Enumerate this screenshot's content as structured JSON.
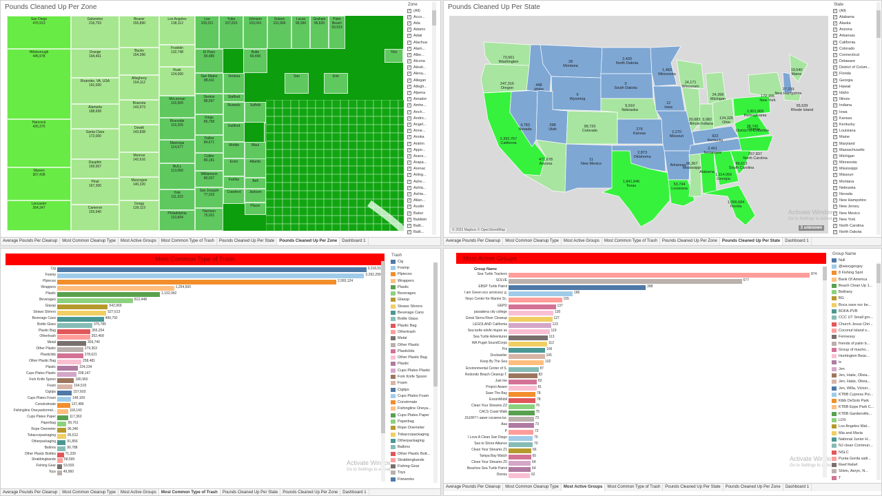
{
  "colors": {
    "treemap_dark": "#15a815",
    "map_blue": "#7ea7d4",
    "map_green": "#36f23d",
    "map_light": "#a8e5a0",
    "title_red": "#ff0000"
  },
  "zone": {
    "title": "Pounds Cleaned Up Per Zone",
    "cells": [
      {
        "name": "San Diego",
        "value": "476,913",
        "c": "#69eb45"
      },
      {
        "name": "Hillsborough",
        "value": "445,978",
        "c": "#69eb45"
      },
      {
        "name": "Hancock",
        "value": "426,370",
        "c": "#69eb45"
      },
      {
        "name": "Warren",
        "value": "307,428",
        "c": "#69eb45"
      },
      {
        "name": "Lancaster",
        "value": "264,347",
        "c": "#69eb45"
      },
      {
        "name": "Galveston",
        "value": "216,753",
        "c": "#a6e68e"
      },
      {
        "name": "Orange",
        "value": "194,461",
        "c": "#a6e68e"
      },
      {
        "name": "Roanoke, VA, USA",
        "value": "191,000",
        "c": "#a6e68e"
      },
      {
        "name": "Alameda",
        "value": "188,658",
        "c": "#a6e68e"
      },
      {
        "name": "Santa Clara",
        "value": "172,000",
        "c": "#a6e68e"
      },
      {
        "name": "Dauphin",
        "value": "169,957",
        "c": "#a6e68e"
      },
      {
        "name": "Pinal",
        "value": "167,300",
        "c": "#a6e68e"
      },
      {
        "name": "Cameron",
        "value": "155,940",
        "c": "#a6e68e"
      },
      {
        "name": "Beaver",
        "value": "155,890",
        "c": "#a6e68e"
      },
      {
        "name": "Bucks",
        "value": "154,396",
        "c": "#a6e68e"
      },
      {
        "name": "Allegheny",
        "value": "154,112",
        "c": "#a6e68e"
      },
      {
        "name": "Brazoria",
        "value": "143,973",
        "c": "#a6e68e"
      },
      {
        "name": "Dewitt",
        "value": "143,838",
        "c": "#a6e68e"
      },
      {
        "name": "Monroe",
        "value": "142,616",
        "c": "#a6e68e"
      },
      {
        "name": "Muscogee",
        "value": "140,220",
        "c": "#a6e68e"
      },
      {
        "name": "Gregg",
        "value": "139,119",
        "c": "#a6e68e"
      },
      {
        "name": "Los Angeles",
        "value": "138,112",
        "c": "#a6e68e"
      },
      {
        "name": "Franklin",
        "value": "132,748",
        "c": "#a6e68e"
      },
      {
        "name": "Rusk",
        "value": "124,000",
        "c": "#a6e68e"
      },
      {
        "name": "McLennan",
        "value": "116,500",
        "c": "#5fc85f"
      },
      {
        "name": "Riverside",
        "value": "116,205",
        "c": "#5fc85f"
      },
      {
        "name": "Maricopa",
        "value": "114,577",
        "c": "#5fc85f"
      },
      {
        "name": "NULL",
        "value": "113,056",
        "c": "#5fc85f"
      },
      {
        "name": "York",
        "value": "111,323",
        "c": "#5fc85f"
      },
      {
        "name": "Philadelphia",
        "value": "110,844",
        "c": "#5fc85f"
      },
      {
        "name": "Lee",
        "value": "109,311",
        "c": "#5fc85f"
      },
      {
        "name": "Yuba",
        "value": "107,815",
        "c": "#5fc85f"
      },
      {
        "name": "Johnson",
        "value": "103,041",
        "c": "#5fc85f"
      },
      {
        "name": "Solano",
        "value": "101,966",
        "c": "#5fc85f"
      },
      {
        "name": "Lucas",
        "value": "99,360",
        "c": "#5fc85f"
      },
      {
        "name": "Graham",
        "value": "96,620",
        "c": "#5fc85f"
      },
      {
        "name": "Palm Beach",
        "value": "93,919",
        "c": "#5fc85f"
      },
      {
        "name": "El Paso",
        "value": "90,485",
        "c": "#5fc85f"
      },
      {
        "name": "Butte",
        "value": "69,499",
        "c": "#5fc85f"
      },
      {
        "name": "Yolo",
        "value": "",
        "c": "#5fc85f"
      },
      {
        "name": "San Mateo",
        "value": "88,411",
        "c": "#5fc85f"
      },
      {
        "name": "Ventura",
        "value": "",
        "c": "#5fc85f"
      },
      {
        "name": "San",
        "value": "",
        "c": "#5fc85f"
      },
      {
        "name": "Erie",
        "value": "",
        "c": "#5fc85f"
      },
      {
        "name": "Denton",
        "value": "88,097",
        "c": "#5fc85f"
      },
      {
        "name": "Stafford",
        "value": "",
        "c": "#5fc85f"
      },
      {
        "name": "Kings",
        "value": "85,758",
        "c": "#5fc85f"
      },
      {
        "name": "Runnels",
        "value": "",
        "c": "#5fc85f"
      },
      {
        "name": "Suffolk",
        "value": "",
        "c": "#5fc85f"
      },
      {
        "name": "Dallas",
        "value": "84,671",
        "c": "#5fc85f"
      },
      {
        "name": "Guilford",
        "value": "",
        "c": "#5fc85f"
      },
      {
        "name": "Clinton",
        "value": "",
        "c": "#5fc85f"
      },
      {
        "name": "Collier",
        "value": "80,181",
        "c": "#5fc85f"
      },
      {
        "name": "Mobile",
        "value": "",
        "c": "#5fc85f"
      },
      {
        "name": "Maui",
        "value": "",
        "c": "#5fc85f"
      },
      {
        "name": "Williamson",
        "value": "80,037",
        "c": "#5fc85f"
      },
      {
        "name": "Ector",
        "value": "",
        "c": "#5fc85f"
      },
      {
        "name": "Atlantic",
        "value": "",
        "c": "#5fc85f"
      },
      {
        "name": "Fairfax",
        "value": "",
        "c": "#5fc85f"
      },
      {
        "name": "Bell",
        "value": "",
        "c": "#5fc85f"
      },
      {
        "name": "San Joaquin",
        "value": "77,333",
        "c": "#5fc85f"
      },
      {
        "name": "Crawford",
        "value": "",
        "c": "#5fc85f"
      },
      {
        "name": "Jackson",
        "value": "",
        "c": "#5fc85f"
      },
      {
        "name": "Placer",
        "value": "",
        "c": "#5fc85f"
      },
      {
        "name": "Harrison",
        "value": "75,021",
        "c": "#5fc85f"
      }
    ],
    "filter_title": "Zone",
    "filter_items": [
      "(All)",
      "Acco...",
      "Ada",
      "Adams",
      "Adair",
      "Alachua",
      "Alam...",
      "Albe...",
      "Alcona",
      "Aleuti...",
      "Alexa...",
      "Allegan",
      "Allegh...",
      "Alpena",
      "Amador",
      "Amhe...",
      "Anch...",
      "Andro...",
      "Angel...",
      "Anne...",
      "Anoka",
      "Antrim",
      "Appo...",
      "Arans...",
      "Arapa...",
      "Arenac",
      "Arling...",
      "Ashe...",
      "Ashla...",
      "Ashta...",
      "Atlan...",
      "Austin",
      "Baker",
      "Baldwin",
      "Balti...",
      "Balti...",
      "Baraga"
    ]
  },
  "state": {
    "title": "Pounds Cleaned Up Per State",
    "labels": [
      {
        "name": "Washington",
        "value": "73,561"
      },
      {
        "name": "Oregon",
        "value": "247,316"
      },
      {
        "name": "California",
        "value": "2,392,767"
      },
      {
        "name": "Nevada",
        "value": "4,783"
      },
      {
        "name": "Idaho",
        "value": "448"
      },
      {
        "name": "Montana",
        "value": "28"
      },
      {
        "name": "Wyoming",
        "value": "9"
      },
      {
        "name": "Utah",
        "value": "398"
      },
      {
        "name": "Arizona",
        "value": "471,678"
      },
      {
        "name": "Colorado",
        "value": "99,720"
      },
      {
        "name": "New Mexico",
        "value": "11"
      },
      {
        "name": "North Dakota",
        "value": "2,430"
      },
      {
        "name": "South Dakota",
        "value": "0"
      },
      {
        "name": "Nebraska",
        "value": "9,910"
      },
      {
        "name": "Kansas",
        "value": "279"
      },
      {
        "name": "Oklahoma",
        "value": "2,873"
      },
      {
        "name": "Texas",
        "value": "1,841,846"
      },
      {
        "name": "Minnesota",
        "value": "1,483"
      },
      {
        "name": "Iowa",
        "value": "12"
      },
      {
        "name": "Missouri",
        "value": "2,270"
      },
      {
        "name": "Arkansas",
        "value": ""
      },
      {
        "name": "Louisiana",
        "value": "53,744"
      },
      {
        "name": "Wisconsin",
        "value": "14,171"
      },
      {
        "name": "Illinois",
        "value": "20,683"
      },
      {
        "name": "Michigan",
        "value": "24,396"
      },
      {
        "name": "Indiana",
        "value": "3,082"
      },
      {
        "name": "Ohio",
        "value": "124,325"
      },
      {
        "name": "Kentucky",
        "value": "822"
      },
      {
        "name": "Tennessee",
        "value": "2,401"
      },
      {
        "name": "Mississippi",
        "value": "96,367"
      },
      {
        "name": "Alabama",
        "value": ""
      },
      {
        "name": "Georgia",
        "value": "1,114,056"
      },
      {
        "name": "Florida",
        "value": "1,096,684"
      },
      {
        "name": "South Carolina",
        "value": "88,613"
      },
      {
        "name": "North Carolina",
        "value": "257,837"
      },
      {
        "name": "Virginia",
        "value": ""
      },
      {
        "name": "Pennsylvania",
        "value": "1,901,969"
      },
      {
        "name": "New York",
        "value": "172,155"
      },
      {
        "name": "Maine",
        "value": "19,540"
      },
      {
        "name": "New Hampshire",
        "value": "27,239"
      },
      {
        "name": "Rhode Island",
        "value": "55,539"
      },
      {
        "name": "District of Columbia",
        "value": "38,742"
      }
    ],
    "credit": "© 2023 Mapbox © OpenStreetMap",
    "unknown": "3 unknown",
    "filter_title": "State",
    "filter_items": [
      "(All)",
      "Alabama",
      "Alaska",
      "Arizona",
      "Arkansas",
      "California",
      "Colorado",
      "Connecticut",
      "Delaware",
      "District of Colum...",
      "Florida",
      "Georgia",
      "Hawaii",
      "Idaho",
      "Illinois",
      "Indiana",
      "Iowa",
      "Kansas",
      "Kentucky",
      "Louisiana",
      "Maine",
      "Maryland",
      "Massachusetts",
      "Michigan",
      "Minnesota",
      "Mississippi",
      "Missouri",
      "Montana",
      "Nebraska",
      "Nevada",
      "New Hampshire",
      "New Jersey",
      "New Mexico",
      "New York",
      "North Carolina",
      "North Dakota",
      "NULL"
    ]
  },
  "tabs_top_left": [
    "Average Pounds Per Cleanup",
    "Most Common Cleanup Type",
    "Most Active Groups",
    "Most Common Type of Trash",
    "Pounds Cleaned Up Per State",
    "Pounds Cleaned Up Per Zone",
    "Dashboard 1"
  ],
  "tabs_top_right": [
    "Average Pounds Per Cleanup",
    "Most Common Cleanup Type",
    "Most Active Groups",
    "Most Common Type of Trash",
    "Pounds Cleaned Up Per Zone",
    "Pounds Cleaned Up Per State",
    "Dashboard 1"
  ],
  "tabs_bottom_left": [
    "Average Pounds Per Cleanup",
    "Most Common Cleanup Type",
    "Most Active Groups",
    "Most Common Type of Trash",
    "Pounds Cleaned Up Per State",
    "Pounds Cleaned Up Per Zone",
    "Dashboard 1"
  ],
  "tabs_bottom_right": [
    "Average Pounds Per Cleanup",
    "Most Common Cleanup Type",
    "Most Active Groups",
    "Most Common Type of Trash",
    "Pounds Cleaned Up Per State",
    "Pounds Cleaned Up Per Zone",
    "Dashboard 1"
  ],
  "watermark": {
    "title": "Activate Windows",
    "sub": "Go to Settings to activate Windows."
  },
  "chart_data": [
    {
      "type": "bar",
      "title": "Most Common Type of Trash",
      "legend_title": "Trash",
      "categories": [
        "Cig",
        "Foamp",
        "Plpieces",
        "Wrappers",
        "Plastic",
        "Beverages",
        "Glassp",
        "Straws Stirrers",
        "Beverage Cans",
        "Bottle Glass",
        "Plastic Bag",
        "Othertrash",
        "Metal",
        "Other Plastic",
        "Plasticlids",
        "Other Plastic Bag",
        "Plastic",
        "Cups Plates Plastic",
        "Fork Knife Spoon",
        "Foam",
        "Cigtips",
        "Cups Plates Foam",
        "Construtmate",
        "Fishingline Oneyardormet...",
        "Cups Plates Paper",
        "Paperbag",
        "Rope Onemeter",
        "Tobaccopackaging",
        "Otherpackaging",
        "Ballons",
        "Other Plastic Bottles",
        "Strabbingbands",
        "Fishing Gear",
        "Toys"
      ],
      "values": [
        3316012,
        3292299,
        2993124,
        1254500,
        1102942,
        812448,
        542969,
        527613,
        499792,
        375785,
        355254,
        352468,
        309740,
        279363,
        278621,
        258481,
        224234,
        208147,
        180960,
        164515,
        157603,
        148109,
        137486,
        118143,
        117363,
        99761,
        96346,
        95512,
        91856,
        90788,
        71339,
        58599,
        53593,
        49960
      ],
      "labels": [
        "3,316,012",
        "3,292,299",
        "2,993,124",
        "1,254,500",
        "1,102,942",
        "812,448",
        "542,969",
        "527,613",
        "499,792",
        "375,785",
        "355,254",
        "352,468",
        "309,740",
        "279,363",
        "278,621",
        "258,481",
        "224,234",
        "208,147",
        "180,960",
        "164,515",
        "157,603",
        "148,109",
        "137,486",
        "118,143",
        "117,363",
        "99,761",
        "96,346",
        "95,512",
        "91,856",
        "90,788",
        "71,339",
        "58,599",
        "53,593",
        "49,960"
      ],
      "colors": [
        "#4e79a7",
        "#a0cbe8",
        "#f28e2b",
        "#ffbe7d",
        "#59a14f",
        "#8cd17d",
        "#b6992d",
        "#f1ce63",
        "#499894",
        "#86bcb6",
        "#e15759",
        "#ff9d9a",
        "#79706e",
        "#bab0ac",
        "#d37295",
        "#fabfd2",
        "#b07aa1",
        "#d4a6c8",
        "#9d7660",
        "#d7b5a6",
        "#4e79a7",
        "#a0cbe8",
        "#f28e2b",
        "#ffbe7d",
        "#59a14f",
        "#8cd17d",
        "#b6992d",
        "#f1ce63",
        "#499894",
        "#86bcb6",
        "#e15759",
        "#ff9d9a",
        "#79706e",
        "#bab0ac"
      ],
      "legend": [
        "Cig",
        "Foamp",
        "Plpieces",
        "Wrappers",
        "Plastic",
        "Beverages",
        "Glassp",
        "Straws Stirrers",
        "Beverage Cans",
        "Bottle Glass",
        "Plastic Bag",
        "Othertrash",
        "Metal",
        "Other Plastic",
        "Plasticlids",
        "Other Plastic Bag",
        "Plastic",
        "Cups Plates Plastic",
        "Fork Knife Spoon",
        "Foam",
        "Cigtips",
        "Cups Plates Foam",
        "Constrmate",
        "Fishingline Oneya...",
        "Cups Plates Paper",
        "Paperbag",
        "Rope Onemeter",
        "Tobaccopackaging",
        "Otherpackaging",
        "Ballons",
        "Other Plastic Bott...",
        "Strabbingbands",
        "Fishing Gear",
        "Toys",
        "Fireworks"
      ]
    },
    {
      "type": "bar",
      "title": "Most Active Groups",
      "header": "Group Name",
      "legend_title": "Group Name",
      "categories": [
        "Sea Turtle Trackers",
        "SOLVE",
        "EBSP Turtle Patrol",
        "I am Green eco servicesc g.",
        "Noyo Center for Marine Sc.",
        "GEPD",
        "pasadena city college",
        "Great Sierra River Cleanup",
        "LEGOLAND California",
        "Sea turtle edvfe ntupre se",
        "Sea Turtle Adventures",
        "WA Puget SoundCorps",
        "Poi",
        "Dockweiler",
        "Keep By The Sea",
        "Environmental Center of S.",
        "Redondo Beach Cleanup T.",
        "Just me",
        "Project Aware",
        "Save The Bay",
        "ExxonMobil",
        "Clean Your Streams ZZ",
        "CACS Coast Walk",
        "JSJ//R? I aawe cscaeea tur.",
        "Aaa",
        "P",
        "I Love A Clean San Diego",
        "Sea to Shore Alliance",
        "Clean Your Streams Z1",
        "Tampa Bay Watch",
        "Clean Your Streams Z0",
        "Beaches Sea Turtle Patrol",
        "Disney"
      ],
      "values": [
        874,
        677,
        398,
        186,
        155,
        137,
        130,
        127,
        123,
        119,
        113,
        112,
        106,
        105,
        102,
        87,
        83,
        82,
        81,
        78,
        78,
        75,
        75,
        73,
        73,
        72,
        70,
        70,
        66,
        65,
        64,
        64,
        62
      ],
      "colors": [
        "#ff9d9a",
        "#bab0ac",
        "#4e79a7",
        "#a0cbe8",
        "#ff9d9a",
        "#d37295",
        "#fabfd2",
        "#f1ce63",
        "#d4a6c8",
        "#fabfd2",
        "#79706e",
        "#f1ce63",
        "#499894",
        "#d7b5a6",
        "#ffbe7d",
        "#86bcb6",
        "#9d7660",
        "#d37295",
        "#fabfd2",
        "#f28e2b",
        "#e15759",
        "#8cd17d",
        "#59a14f",
        "#bab0ac",
        "#b07aa1",
        "#ff9d9a",
        "#a0cbe8",
        "#86bcb6",
        "#b6992d",
        "#d37295",
        "#d4a6c8",
        "#b07aa1",
        "#fabfd2"
      ],
      "legend": [
        "Null",
        "@wavygergey",
        "8 Fishing Spot",
        "Bank Of America",
        "Beach Clean Up 1...",
        "Bethany",
        "BG",
        "Boca save our be...",
        "BOFA-PVB",
        "CCC UT Small gro...",
        "Church Jesus Chri...",
        "Coconut Island s...",
        "Fennessy",
        "friends of palm b...",
        "Group of macho...",
        "Huntington Beac...",
        "is",
        "Jen",
        "Jen, Hatie, Olivia...",
        "Jen, Hatie, Olivia...",
        "Jen, Willa, Victori...",
        "KTBB Cypress Poi...",
        "Ktbb DeSoto Park",
        "KTBB Epps Park C...",
        "KTBB Gardenville...",
        "LDS",
        "Los Angeles Wat...",
        "Mia and Maria",
        "National Junior H...",
        "NJ clean Commun...",
        "NSLC",
        "Punta Gorda saili...",
        "Reef Relief",
        "Shirin, Aeryn, N...",
        "T"
      ]
    }
  ]
}
